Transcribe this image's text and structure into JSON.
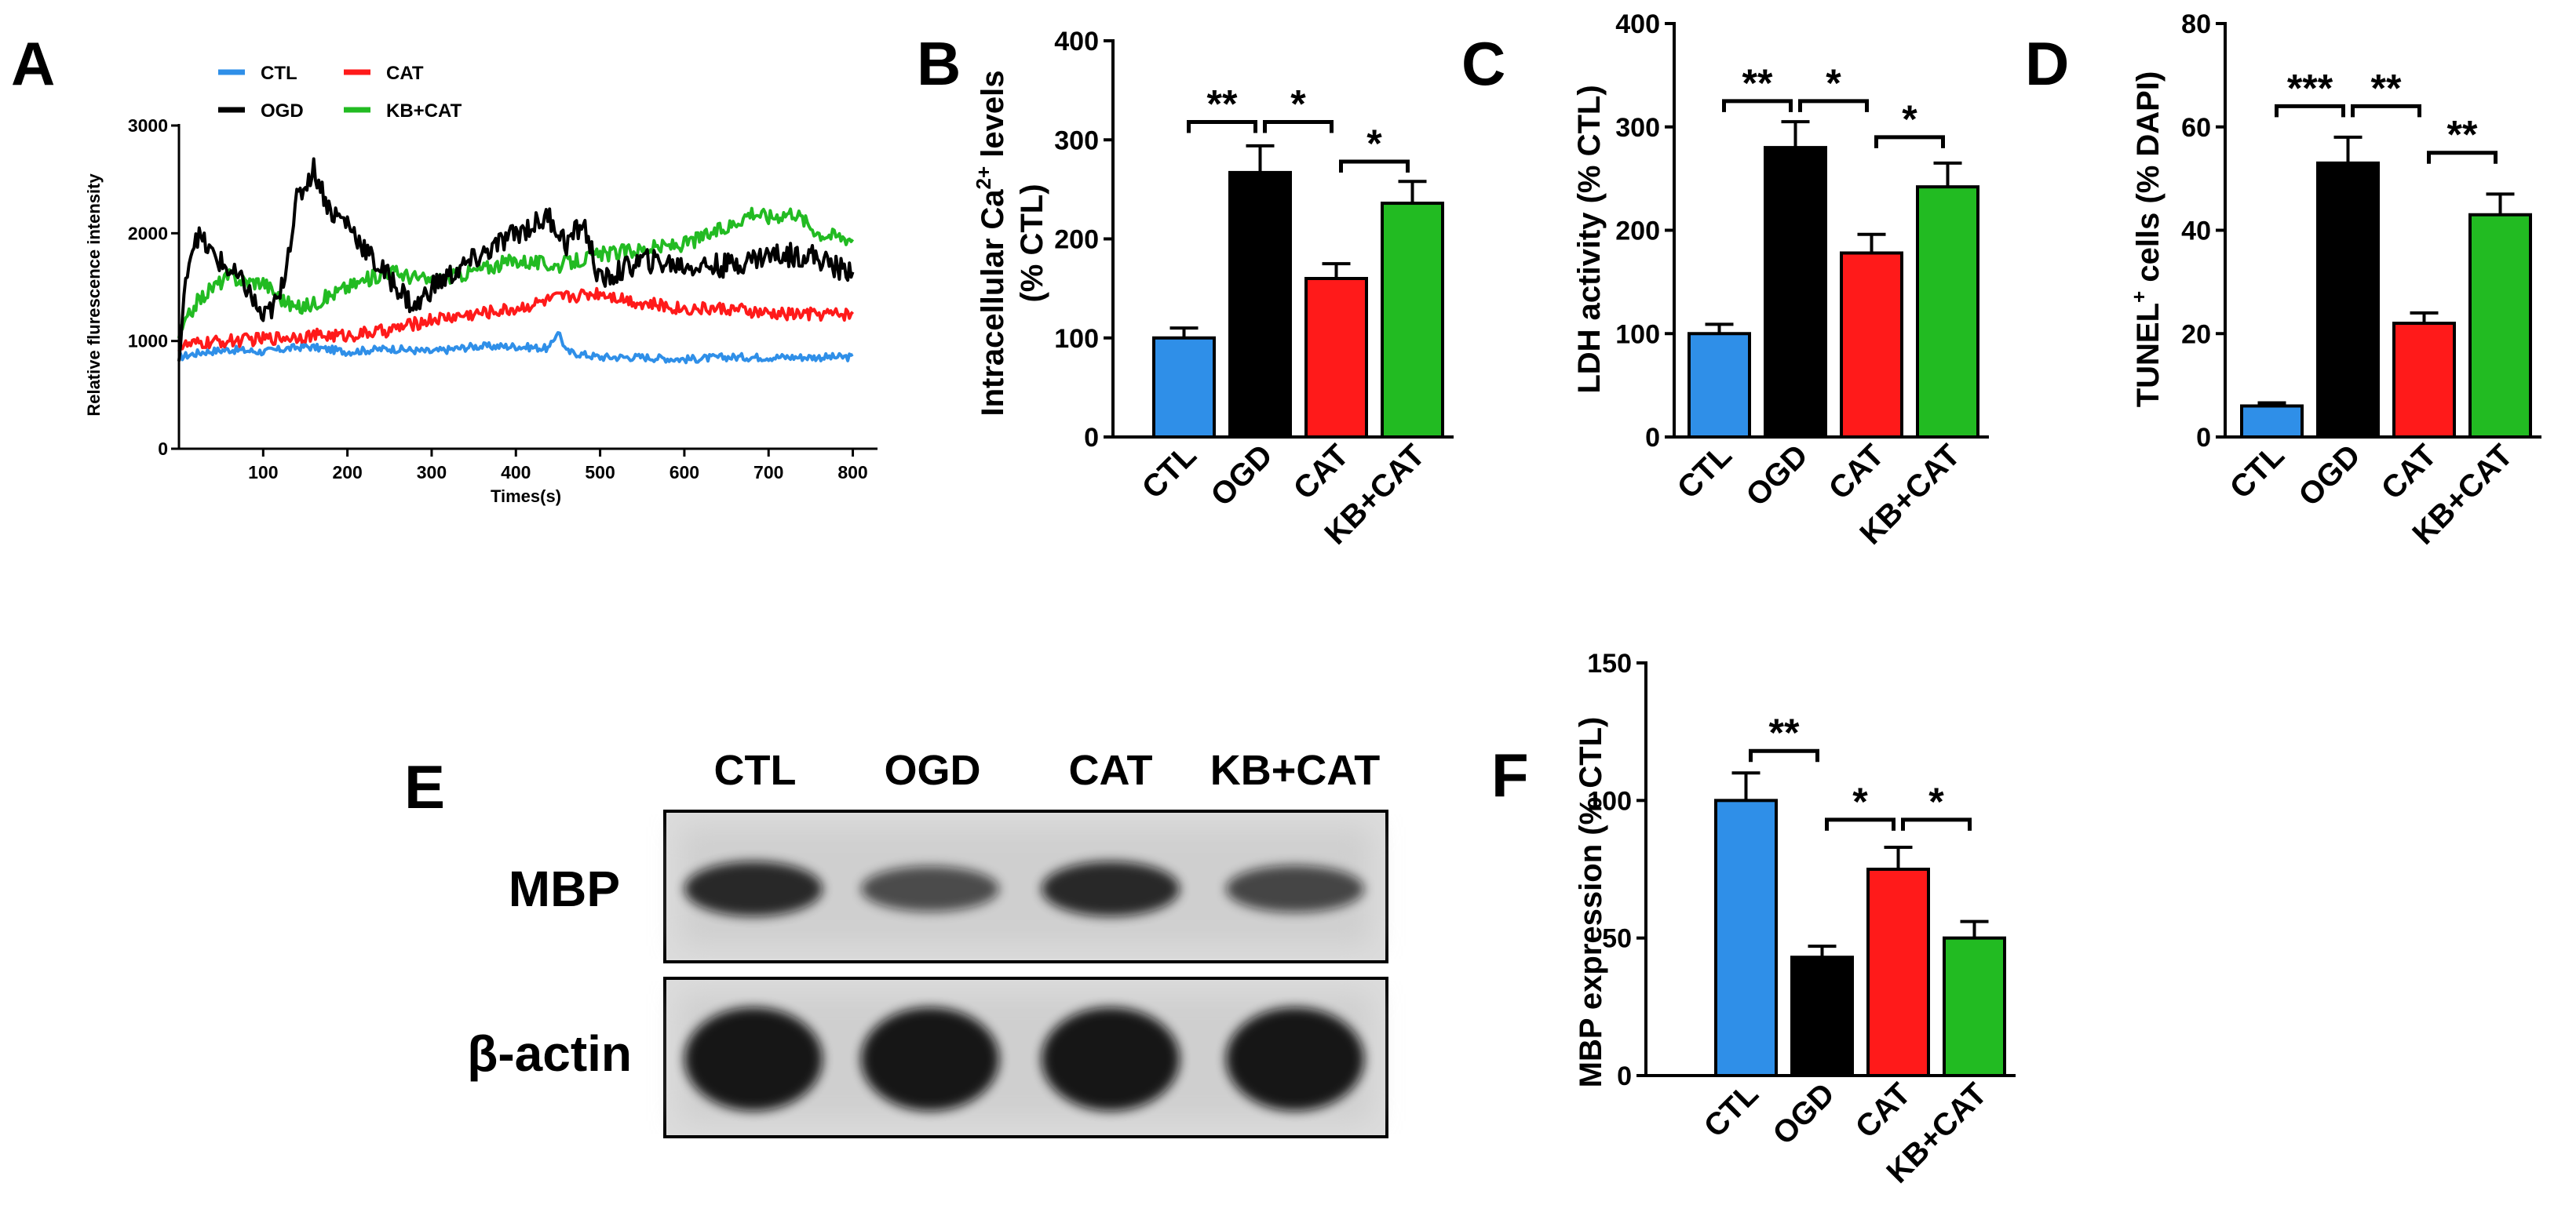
{
  "panel_letters": {
    "A": "A",
    "B": "B",
    "C": "C",
    "D": "D",
    "E": "E",
    "F": "F"
  },
  "colors": {
    "CTL": "#2f8fe8",
    "OGD": "#000000",
    "CAT": "#ff1a1a",
    "KB+CAT": "#22bb22"
  },
  "chart_data": [
    {
      "id": "A",
      "type": "line",
      "title": "",
      "xlabel": "Times(s)",
      "ylabel": "Relative flurescence  intensity",
      "xlim": [
        0,
        820
      ],
      "ylim": [
        0,
        3000
      ],
      "xticks": [
        100,
        200,
        300,
        400,
        500,
        600,
        700,
        800
      ],
      "yticks": [
        0,
        1000,
        2000,
        3000
      ],
      "legend": [
        "CTL",
        "CAT",
        "OGD",
        "KB+CAT"
      ],
      "series": [
        {
          "name": "CTL",
          "x": [
            0,
            30,
            60,
            100,
            150,
            200,
            250,
            300,
            350,
            400,
            440,
            450,
            460,
            500,
            550,
            600,
            650,
            700,
            750,
            800
          ],
          "y": [
            850,
            900,
            920,
            900,
            950,
            900,
            930,
            900,
            950,
            950,
            930,
            1100,
            900,
            850,
            850,
            830,
            850,
            850,
            850,
            850
          ]
        },
        {
          "name": "OGD",
          "x": [
            0,
            10,
            20,
            40,
            60,
            80,
            100,
            120,
            140,
            160,
            180,
            200,
            230,
            260,
            280,
            300,
            330,
            360,
            400,
            440,
            460,
            480,
            500,
            550,
            600,
            650,
            700,
            750,
            790,
            800
          ],
          "y": [
            800,
            1700,
            2000,
            1800,
            1650,
            1500,
            1200,
            1400,
            2300,
            2600,
            2200,
            2100,
            1750,
            1500,
            1300,
            1500,
            1650,
            1800,
            2000,
            2150,
            1900,
            2100,
            1550,
            1750,
            1700,
            1700,
            1800,
            1800,
            1650,
            1700
          ]
        },
        {
          "name": "CAT",
          "x": [
            0,
            30,
            60,
            100,
            150,
            200,
            250,
            300,
            350,
            400,
            450,
            500,
            550,
            600,
            650,
            700,
            750,
            800
          ],
          "y": [
            950,
            980,
            1000,
            1020,
            1050,
            1050,
            1100,
            1200,
            1250,
            1300,
            1400,
            1450,
            1350,
            1300,
            1300,
            1250,
            1250,
            1250
          ]
        },
        {
          "name": "KB+CAT",
          "x": [
            0,
            20,
            40,
            60,
            80,
            100,
            120,
            140,
            160,
            200,
            250,
            300,
            350,
            400,
            450,
            500,
            550,
            600,
            650,
            680,
            700,
            730,
            760,
            800
          ],
          "y": [
            1050,
            1350,
            1500,
            1600,
            1550,
            1550,
            1400,
            1300,
            1350,
            1500,
            1650,
            1550,
            1650,
            1750,
            1700,
            1800,
            1850,
            1900,
            2050,
            2200,
            2150,
            2200,
            2000,
            1950
          ]
        }
      ]
    },
    {
      "id": "B",
      "type": "bar",
      "categories": [
        "CTL",
        "OGD",
        "CAT",
        "KB+CAT"
      ],
      "values": [
        100,
        267,
        160,
        236
      ],
      "errors": [
        10,
        27,
        15,
        22
      ],
      "ylabel_main": "Intracellular Ca",
      "ylabel_sup": "2+",
      "ylabel_tail": " levels",
      "ylabel_line2": "(% CTL)",
      "ylim": [
        0,
        400
      ],
      "yticks": [
        0,
        100,
        200,
        300,
        400
      ],
      "significance": [
        {
          "from": 0,
          "to": 1,
          "label": "**",
          "y": 318
        },
        {
          "from": 1,
          "to": 2,
          "label": "*",
          "y": 318
        },
        {
          "from": 2,
          "to": 3,
          "label": "*",
          "y": 278
        }
      ]
    },
    {
      "id": "C",
      "type": "bar",
      "categories": [
        "CTL",
        "OGD",
        "CAT",
        "KB+CAT"
      ],
      "values": [
        100,
        280,
        178,
        242
      ],
      "errors": [
        9,
        25,
        18,
        23
      ],
      "ylabel": "LDH activity (% CTL)",
      "ylim": [
        0,
        400
      ],
      "yticks": [
        0,
        100,
        200,
        300,
        400
      ],
      "significance": [
        {
          "from": 0,
          "to": 1,
          "label": "**",
          "y": 325
        },
        {
          "from": 1,
          "to": 2,
          "label": "*",
          "y": 325
        },
        {
          "from": 2,
          "to": 3,
          "label": "*",
          "y": 290
        }
      ]
    },
    {
      "id": "D",
      "type": "bar",
      "categories": [
        "CTL",
        "OGD",
        "CAT",
        "KB+CAT"
      ],
      "values": [
        6,
        53,
        22,
        43
      ],
      "errors": [
        0.6,
        5,
        2,
        4
      ],
      "ylabel_main": "TUNEL",
      "ylabel_sup": "+",
      "ylabel_tail": " cells (% DAPI)",
      "ylim": [
        0,
        80
      ],
      "yticks": [
        0,
        20,
        40,
        60,
        80
      ],
      "significance": [
        {
          "from": 0,
          "to": 1,
          "label": "***",
          "y": 64
        },
        {
          "from": 1,
          "to": 2,
          "label": "**",
          "y": 64
        },
        {
          "from": 2,
          "to": 3,
          "label": "**",
          "y": 55
        }
      ]
    },
    {
      "id": "F",
      "type": "bar",
      "categories": [
        "CTL",
        "OGD",
        "CAT",
        "KB+CAT"
      ],
      "values": [
        100,
        43,
        75,
        50
      ],
      "errors": [
        10,
        4,
        8,
        6
      ],
      "ylabel": "MBP expression (% CTL)",
      "ylim": [
        0,
        150
      ],
      "yticks": [
        0,
        50,
        100,
        150
      ],
      "significance": [
        {
          "from": 0,
          "to": 1,
          "label": "**",
          "y": 118
        },
        {
          "from": 2,
          "to": 3,
          "label": "*",
          "y": 93
        },
        {
          "from": 1,
          "to": 2,
          "label": "*",
          "y": 93
        }
      ]
    }
  ],
  "blot": {
    "lanes": [
      "CTL",
      "OGD",
      "CAT",
      "KB+CAT"
    ],
    "rows": [
      {
        "label": "MBP",
        "intensity": [
          0.85,
          0.55,
          0.85,
          0.6
        ]
      },
      {
        "label": "β-actin",
        "intensity": [
          1.0,
          1.0,
          1.0,
          1.0
        ]
      }
    ]
  }
}
